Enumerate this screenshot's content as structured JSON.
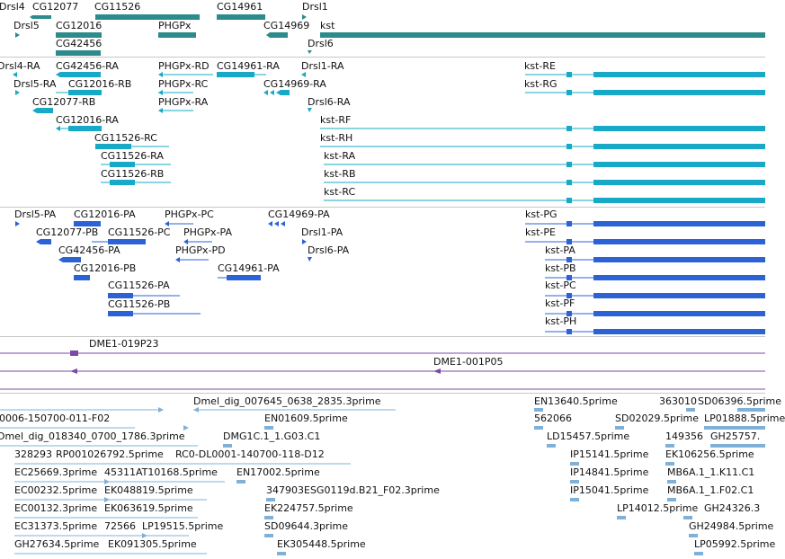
{
  "colors": {
    "gene": "#2e8b8b",
    "transcript": "#17a9c6",
    "protein": "#2b62d6",
    "clone": "#7a4aa8",
    "est": "#7fb0d8",
    "divider": "#c8c8c8"
  },
  "tracks": {
    "genes": {
      "labels": [
        "Drsl4",
        "CG12077",
        "CG11526",
        "CG14961",
        "Drsl1",
        "Drsl5",
        "CG12016",
        "PHGPx",
        "CG14969",
        "kst",
        "CG42456",
        "Drsl6"
      ]
    },
    "transcripts": {
      "labels": [
        "Drsl4-RA",
        "CG42456-RA",
        "PHGPx-RD",
        "CG14961-RA",
        "Drsl1-RA",
        "kst-RE",
        "Drsl5-RA",
        "CG12016-RB",
        "PHGPx-RC",
        "CG14969-RA",
        "kst-RG",
        "CG12077-RB",
        "PHGPx-RA",
        "Drsl6-RA",
        "CG12016-RA",
        "kst-RF",
        "CG11526-RC",
        "kst-RH",
        "CG11526-RA",
        "kst-RA",
        "CG11526-RB",
        "kst-RB",
        "kst-RC"
      ]
    },
    "proteins": {
      "labels": [
        "Drsl5-PA",
        "CG12016-PA",
        "PHGPx-PC",
        "CG14969-PA",
        "kst-PG",
        "CG12077-PB",
        "CG11526-PC",
        "PHGPx-PA",
        "Drsl1-PA",
        "kst-PE",
        "CG42456-PA",
        "PHGPx-PD",
        "Drsl6-PA",
        "kst-PA",
        "CG12016-PB",
        "CG14961-PA",
        "kst-PB",
        "CG11526-PA",
        "kst-PC",
        "CG11526-PB",
        "kst-PF",
        "kst-PH"
      ]
    },
    "clones": {
      "labels": [
        "DME1-019P23",
        "DME1-001P05"
      ]
    },
    "ests": {
      "labels": [
        "Dmel_dig_007645_0638_2835.3prime",
        "EN13640.5prime",
        "363010",
        "SD06396.5prime",
        "0006-150700-011-F02",
        "EN01609.5prime",
        "562066",
        "SD02029.5prime",
        "LP01888.5prime",
        "Dmel_dig_018340_0700_1786.3prime",
        "DMG1C.1_1.G03.C1",
        "LD15457.5prime",
        "149356",
        "GH25757.",
        "328293",
        "RP001026792.5prime",
        "RC0-DL0001-140700-118-D12",
        "IP15141.5prime",
        "EK106256.5prime",
        "EC25669.3prime",
        "45311",
        "AT10168.5prime",
        "EN17002.5prime",
        "IP14841.5prime",
        "MB6A.1_1.K11.C1",
        "EC00232.5prime",
        "EK048819.5prime",
        "347903",
        "ESG0119d.B21_F02.3prime",
        "IP15041.5prime",
        "MB6A.1_1.F02.C1",
        "EC00132.3prime",
        "EK063619.5prime",
        "EK224757.5prime",
        "LP14012.5prime",
        "GH24326.3",
        "EC31373.5prime",
        "72566",
        "LP19515.5prime",
        "SD09644.3prime",
        "GH24984.5prime",
        "GH27634.5prime",
        "EK091305.5prime",
        "EK305448.5prime",
        "LP05992.5prime"
      ]
    }
  }
}
